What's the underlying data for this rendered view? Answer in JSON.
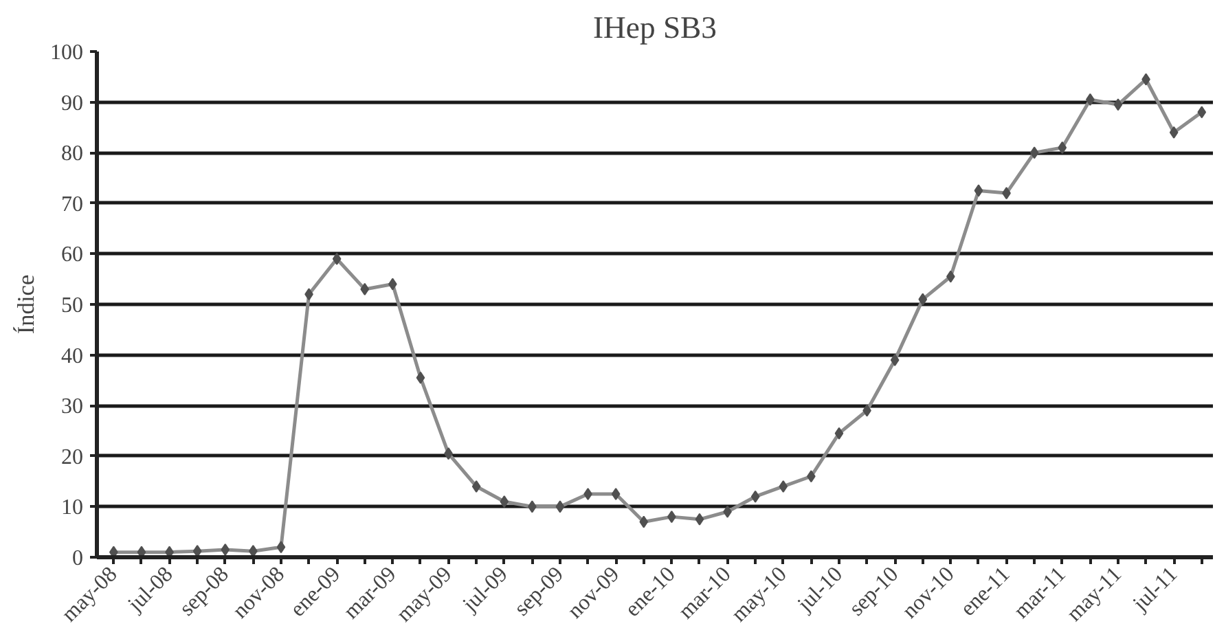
{
  "chart_data": {
    "type": "line",
    "title": "IHep SB3",
    "ylabel": "Índice",
    "categories": [
      "may-08",
      null,
      "jul-08",
      null,
      "sep-08",
      null,
      "nov-08",
      null,
      "ene-09",
      null,
      "mar-09",
      null,
      "may-09",
      null,
      "jul-09",
      null,
      "sep-09",
      null,
      "nov-09",
      null,
      "ene-10",
      null,
      "mar-10",
      null,
      "may-10",
      null,
      "jul-10",
      null,
      "sep-10",
      null,
      "nov-10",
      null,
      "ene-11",
      null,
      "mar-11",
      null,
      "may-11",
      null,
      "jul-11",
      null
    ],
    "series": [
      {
        "color": "#8c8c8c",
        "values": [
          1,
          1,
          1,
          1.2,
          1.5,
          1.2,
          2,
          52,
          59,
          53,
          54,
          35.5,
          20.5,
          14,
          11,
          10,
          10,
          12.5,
          12.5,
          7,
          8,
          7.5,
          9,
          12,
          14,
          16,
          24.5,
          29,
          39,
          51,
          55.5,
          72.5,
          72,
          80,
          81,
          90.5,
          89.5,
          94.5,
          84,
          88
        ]
      }
    ],
    "ylim": [
      0,
      100
    ],
    "yticks": [
      0,
      10,
      20,
      30,
      40,
      50,
      60,
      70,
      80,
      90,
      100
    ],
    "grid": "y",
    "marker": "diamond",
    "line_style": "solid"
  }
}
